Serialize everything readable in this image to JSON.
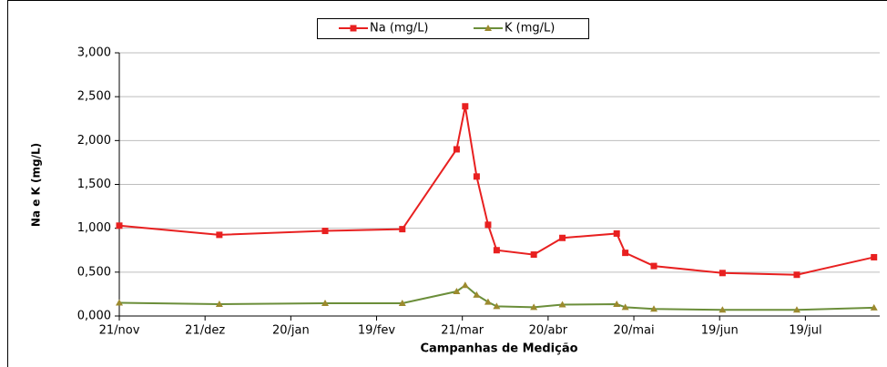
{
  "chart_data": {
    "type": "line",
    "y_label": "Na e K (mg/L)",
    "x_label": "Campanhas de Medição",
    "x": [
      0,
      35,
      72,
      99,
      118,
      121,
      125,
      129,
      132,
      145,
      155,
      174,
      177,
      187,
      211,
      237,
      264
    ],
    "xlim": [
      0,
      266
    ],
    "xticks": [
      {
        "value": 0,
        "label": "21/nov"
      },
      {
        "value": 30,
        "label": "21/dez"
      },
      {
        "value": 60,
        "label": "20/jan"
      },
      {
        "value": 90,
        "label": "19/fev"
      },
      {
        "value": 120,
        "label": "21/mar"
      },
      {
        "value": 150,
        "label": "20/abr"
      },
      {
        "value": 180,
        "label": "20/mai"
      },
      {
        "value": 210,
        "label": "19/jun"
      },
      {
        "value": 240,
        "label": "19/jul"
      }
    ],
    "ylim": [
      0,
      3000
    ],
    "yticks": [
      {
        "value": 0,
        "label": "0,000"
      },
      {
        "value": 500,
        "label": "0,500"
      },
      {
        "value": 1000,
        "label": "1,000"
      },
      {
        "value": 1500,
        "label": "1,500"
      },
      {
        "value": 2000,
        "label": "2,000"
      },
      {
        "value": 2500,
        "label": "2,500"
      },
      {
        "value": 3000,
        "label": "3,000"
      }
    ],
    "grid": true,
    "legend": "top",
    "series": [
      {
        "name": "Na (mg/L)",
        "color": "#e82020",
        "marker": "square",
        "values": [
          1030,
          925,
          970,
          990,
          1900,
          2390,
          1590,
          1040,
          750,
          700,
          890,
          940,
          720,
          570,
          490,
          470,
          670
        ]
      },
      {
        "name": "K (mg/L)",
        "color": "#6b8e3a",
        "marker": "triangle",
        "values": [
          150,
          135,
          145,
          145,
          280,
          350,
          240,
          160,
          110,
          100,
          130,
          135,
          100,
          80,
          70,
          70,
          95
        ]
      }
    ]
  }
}
